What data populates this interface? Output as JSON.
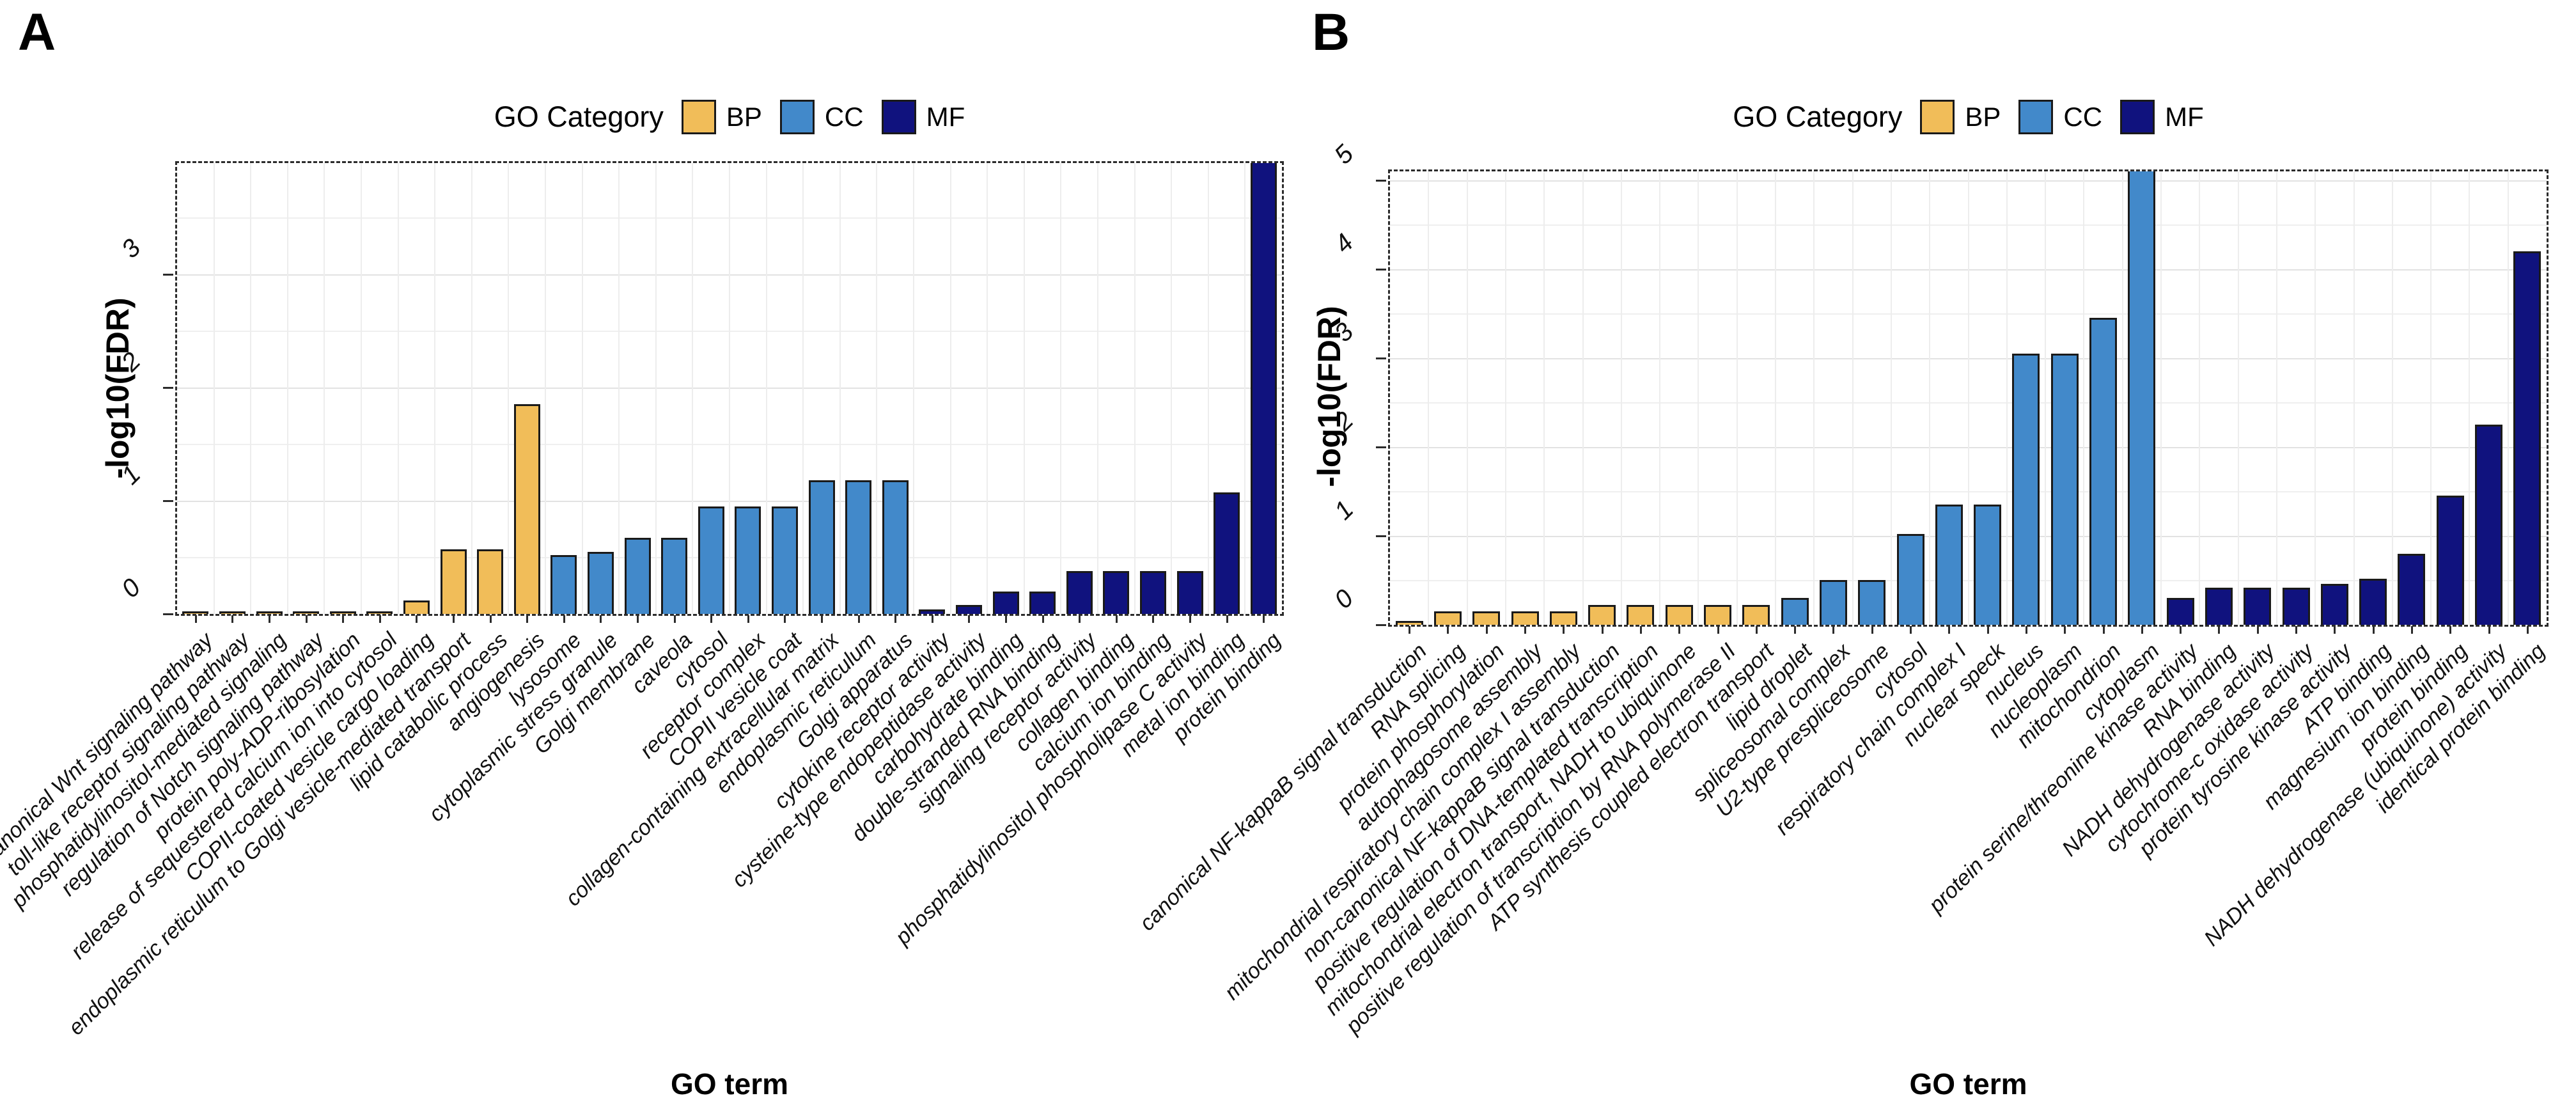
{
  "page": {
    "background": "#ffffff"
  },
  "panels": [
    {
      "label": "A"
    },
    {
      "label": "B"
    }
  ],
  "colors": {
    "BP": "#F1BD59",
    "CC": "#4289CA",
    "MF": "#10127E"
  },
  "style": {
    "grid_color": "#e6e6e6",
    "bar_border": "#1a1a1a",
    "panel_border": "#2b2b2b"
  },
  "chart_data": [
    {
      "panel": "A",
      "type": "bar",
      "title": "",
      "legend_title": "GO Category",
      "legend": [
        "BP",
        "CC",
        "MF"
      ],
      "legend_position": "top",
      "grid": true,
      "xlabel": "GO term",
      "ylabel": "-log10(FDR)",
      "ylim": [
        0,
        3.98
      ],
      "yticks": [
        0,
        1,
        2,
        3
      ],
      "clipped_categories": [
        "protein binding"
      ],
      "categories": [
        "positive regulation of canonical Wnt signaling pathway",
        "toll-like receptor signaling pathway",
        "phosphatidylinositol-mediated signaling",
        "regulation of Notch signaling pathway",
        "protein poly-ADP-ribosylation",
        "release of sequestered calcium ion into cytosol",
        "COPII-coated vesicle cargo loading",
        "endoplasmic reticulum to Golgi vesicle-mediated transport",
        "lipid catabolic process",
        "angiogenesis",
        "lysosome",
        "cytoplasmic stress granule",
        "Golgi membrane",
        "caveola",
        "cytosol",
        "receptor complex",
        "COPII vesicle coat",
        "collagen-containing extracellular matrix",
        "endoplasmic reticulum",
        "Golgi apparatus",
        "cytokine receptor activity",
        "cysteine-type endopeptidase activity",
        "carbohydrate binding",
        "double-stranded RNA binding",
        "signaling receptor activity",
        "collagen binding",
        "calcium ion binding",
        "phosphatidylinositol phospholipase C activity",
        "metal ion binding",
        "protein binding"
      ],
      "series_category": [
        "BP",
        "BP",
        "BP",
        "BP",
        "BP",
        "BP",
        "BP",
        "BP",
        "BP",
        "BP",
        "CC",
        "CC",
        "CC",
        "CC",
        "CC",
        "CC",
        "CC",
        "CC",
        "CC",
        "CC",
        "MF",
        "MF",
        "MF",
        "MF",
        "MF",
        "MF",
        "MF",
        "MF",
        "MF",
        "MF"
      ],
      "values": [
        0.02,
        0.02,
        0.02,
        0.02,
        0.02,
        0.02,
        0.12,
        0.57,
        0.57,
        1.85,
        0.52,
        0.55,
        0.67,
        0.67,
        0.95,
        0.95,
        0.95,
        1.18,
        1.18,
        1.18,
        0.04,
        0.08,
        0.2,
        0.2,
        0.38,
        0.38,
        0.38,
        0.38,
        1.07,
        4.1
      ]
    },
    {
      "panel": "B",
      "type": "bar",
      "title": "",
      "legend_title": "GO Category",
      "legend": [
        "BP",
        "CC",
        "MF"
      ],
      "legend_position": "top",
      "grid": true,
      "xlabel": "GO term",
      "ylabel": "-log10(FDR)",
      "ylim": [
        0,
        5.1
      ],
      "yticks": [
        0,
        1,
        2,
        3,
        4,
        5
      ],
      "clipped_categories": [
        "cytoplasm"
      ],
      "categories": [
        "canonical NF-kappaB signal transduction",
        "RNA splicing",
        "protein phosphorylation",
        "autophagosome assembly",
        "mitochondrial respiratory chain complex I assembly",
        "non-canonical NF-kappaB signal transduction",
        "positive regulation of DNA-templated transcription",
        "mitochondrial electron transport, NADH to ubiquinone",
        "positive regulation of transcription by RNA polymerase II",
        "ATP synthesis coupled electron transport",
        "lipid droplet",
        "spliceosomal complex",
        "U2-type prespliceosome",
        "cytosol",
        "respiratory chain complex I",
        "nuclear speck",
        "nucleus",
        "nucleoplasm",
        "mitochondrion",
        "cytoplasm",
        "protein serine/threonine kinase activity",
        "RNA binding",
        "NADH dehydrogenase activity",
        "cytochrome-c oxidase activity",
        "protein tyrosine kinase activity",
        "ATP binding",
        "magnesium ion binding",
        "protein binding",
        "NADH dehydrogenase (ubiquinone) activity",
        "identical protein binding"
      ],
      "series_category": [
        "BP",
        "BP",
        "BP",
        "BP",
        "BP",
        "BP",
        "BP",
        "BP",
        "BP",
        "BP",
        "CC",
        "CC",
        "CC",
        "CC",
        "CC",
        "CC",
        "CC",
        "CC",
        "CC",
        "CC",
        "MF",
        "MF",
        "MF",
        "MF",
        "MF",
        "MF",
        "MF",
        "MF",
        "MF",
        "MF"
      ],
      "values": [
        0.04,
        0.15,
        0.15,
        0.15,
        0.15,
        0.22,
        0.22,
        0.22,
        0.22,
        0.22,
        0.3,
        0.5,
        0.5,
        1.02,
        1.35,
        1.35,
        3.05,
        3.05,
        3.45,
        5.3,
        0.3,
        0.42,
        0.42,
        0.42,
        0.46,
        0.52,
        0.8,
        1.45,
        2.25,
        4.2
      ]
    }
  ]
}
